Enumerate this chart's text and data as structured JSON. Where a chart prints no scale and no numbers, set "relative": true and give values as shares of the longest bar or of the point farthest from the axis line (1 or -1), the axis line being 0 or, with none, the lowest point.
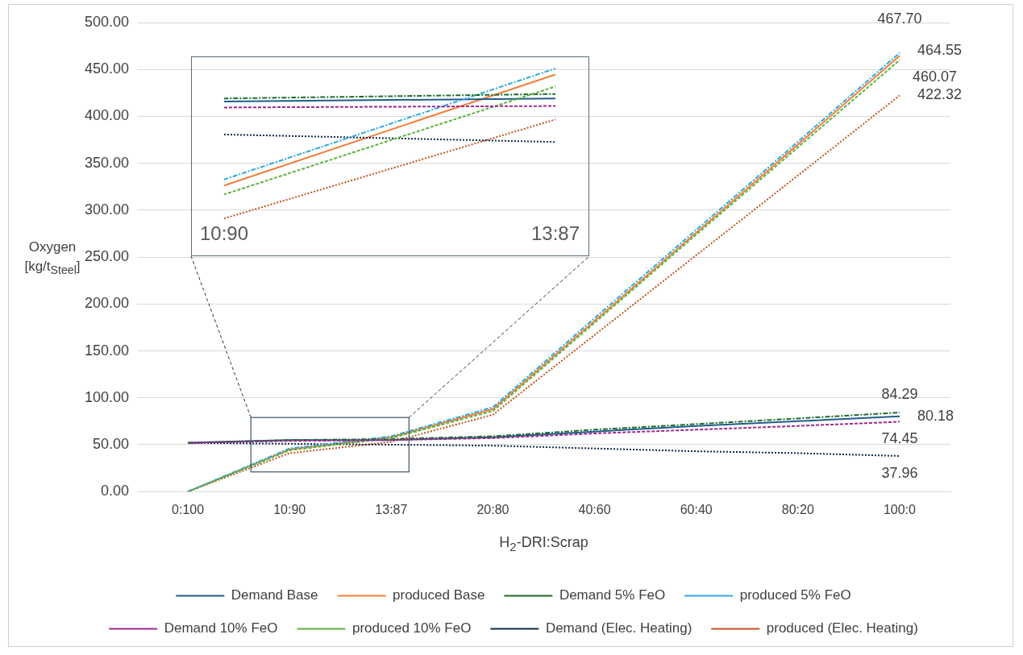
{
  "chart_data": [
    {
      "type": "line",
      "xlabel": "H$_{2}$-DRI:Scrap",
      "ylabel": "Oxygen [kg/t$_{Steel}$]",
      "categories": [
        "0:100",
        "10:90",
        "13:87",
        "20:80",
        "40:60",
        "60:40",
        "80:20",
        "100:0"
      ],
      "ylim": [
        0,
        500
      ],
      "yticks": [
        {
          "value": 0,
          "label": "0.00"
        },
        {
          "value": 50,
          "label": "50.00"
        },
        {
          "value": 100,
          "label": "100.00"
        },
        {
          "value": 150,
          "label": "150.00"
        },
        {
          "value": 200,
          "label": "200.00"
        },
        {
          "value": 250,
          "label": "250.00"
        },
        {
          "value": 300,
          "label": "300.00"
        },
        {
          "value": 350,
          "label": "350.00"
        },
        {
          "value": 400,
          "label": "400.00"
        },
        {
          "value": 450,
          "label": "450.00"
        },
        {
          "value": 500,
          "label": "500.00"
        }
      ],
      "grid": "y",
      "legend": "bottom",
      "marker": "none",
      "series": [
        {
          "name": "Demand Base",
          "color": "#1f5c8b",
          "line_style": "solid",
          "values": [
            52,
            55,
            55,
            58,
            64,
            70,
            75,
            80.18
          ],
          "value_labels": [
            null,
            null,
            null,
            null,
            null,
            null,
            null,
            "80.18"
          ]
        },
        {
          "name": "produced Base",
          "color": "#f07f3c",
          "line_style": "solid",
          "values": [
            0,
            45,
            58,
            88,
            182,
            276,
            370,
            464.55
          ],
          "value_labels": [
            null,
            null,
            null,
            null,
            null,
            null,
            null,
            "464.55"
          ]
        },
        {
          "name": "Demand 5% FeO",
          "color": "#1e6b2e",
          "line_style": "dashdot",
          "values": [
            52,
            55,
            56,
            59,
            66,
            72,
            78,
            84.29
          ],
          "value_labels": [
            null,
            null,
            null,
            null,
            null,
            null,
            null,
            "84.29"
          ]
        },
        {
          "name": "produced 5% FeO",
          "color": "#2ea8df",
          "line_style": "dashdot",
          "values": [
            0,
            46,
            59,
            90,
            185,
            279,
            373,
            467.7
          ],
          "value_labels": [
            null,
            null,
            null,
            null,
            null,
            null,
            null,
            "467.70"
          ]
        },
        {
          "name": "Demand 10% FeO",
          "color": "#a0288f",
          "line_style": "dashed",
          "values": [
            52,
            54,
            55,
            57,
            62,
            66,
            70,
            74.45
          ],
          "value_labels": [
            null,
            null,
            null,
            null,
            null,
            null,
            null,
            "74.45"
          ]
        },
        {
          "name": "produced 10% FeO",
          "color": "#5bb33f",
          "line_style": "dashed",
          "values": [
            0,
            44,
            57,
            86,
            180,
            274,
            367,
            460.07
          ],
          "value_labels": [
            null,
            null,
            null,
            null,
            null,
            null,
            null,
            "460.07"
          ]
        },
        {
          "name": "Demand (Elec. Heating)",
          "color": "#0e2b48",
          "line_style": "dotted",
          "values": [
            52,
            51,
            50,
            49,
            46,
            43,
            41,
            37.96
          ],
          "value_labels": [
            null,
            null,
            null,
            null,
            null,
            null,
            null,
            "37.96"
          ]
        },
        {
          "name": "produced (Elec. Heating)",
          "color": "#c0541d",
          "line_style": "dotted",
          "values": [
            0,
            41,
            53,
            82,
            167,
            252,
            337,
            422.32
          ],
          "value_labels": [
            null,
            null,
            null,
            null,
            null,
            null,
            null,
            "422.32"
          ]
        }
      ]
    },
    {
      "type": "line",
      "categories": [
        "10:90",
        "13:87"
      ],
      "relative": true,
      "legend": false,
      "marker": "none",
      "series": [
        {
          "color": "#1f5c8b",
          "line_style": "solid",
          "values": [
            0.78,
            0.8
          ]
        },
        {
          "color": "#f07f3c",
          "line_style": "solid",
          "values": [
            0.22,
            0.96
          ]
        },
        {
          "color": "#1e6b2e",
          "line_style": "dashdot",
          "values": [
            0.8,
            0.83
          ]
        },
        {
          "color": "#2ea8df",
          "line_style": "dashdot",
          "values": [
            0.26,
            1
          ]
        },
        {
          "color": "#a0288f",
          "line_style": "dashed",
          "values": [
            0.74,
            0.75
          ]
        },
        {
          "color": "#5bb33f",
          "line_style": "dashed",
          "values": [
            0.16,
            0.88
          ]
        },
        {
          "color": "#0e2b48",
          "line_style": "dotted",
          "values": [
            0.56,
            0.51
          ]
        },
        {
          "color": "#c0541d",
          "line_style": "dotted",
          "values": [
            0,
            0.66
          ]
        }
      ]
    }
  ]
}
